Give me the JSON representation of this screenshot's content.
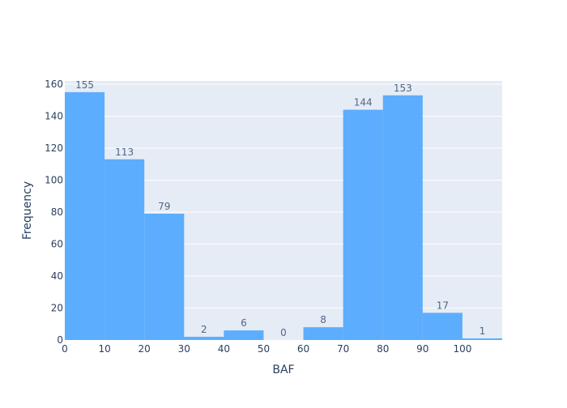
{
  "chart_data": {
    "type": "bar",
    "title": "",
    "xlabel": "BAF",
    "ylabel": "Frequency",
    "bin_edges": [
      0,
      10,
      20,
      30,
      40,
      50,
      60,
      70,
      80,
      90,
      100,
      110
    ],
    "values": [
      155,
      113,
      79,
      2,
      6,
      0,
      8,
      144,
      153,
      17,
      1
    ],
    "xlim": [
      0,
      110
    ],
    "ylim": [
      0,
      162
    ],
    "xticks": [
      0,
      10,
      20,
      30,
      40,
      50,
      60,
      70,
      80,
      90,
      100
    ],
    "yticks": [
      0,
      20,
      40,
      60,
      80,
      100,
      120,
      140,
      160
    ],
    "grid": true,
    "bar_color": "#4da6ff",
    "plot_background": "#e5ecf6",
    "label_color": "#506784",
    "tick_color": "#2a3f5f"
  }
}
